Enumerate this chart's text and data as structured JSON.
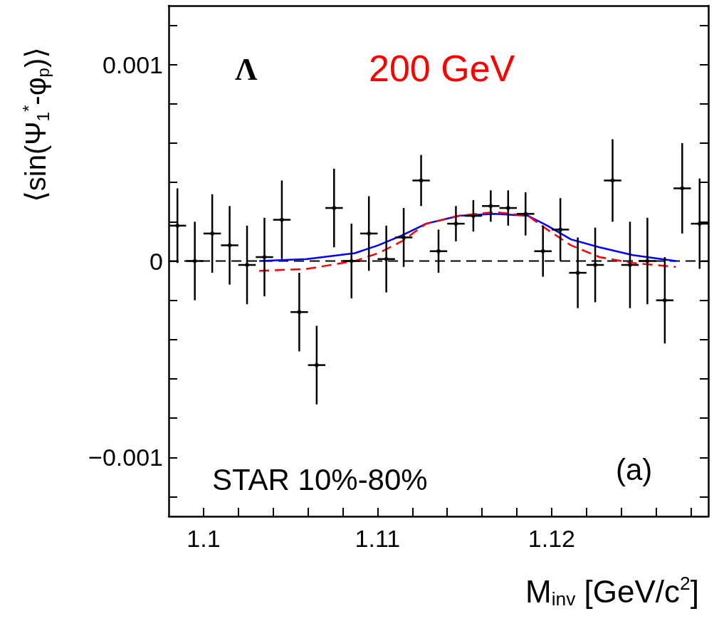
{
  "chart_data": {
    "type": "scatter",
    "xlabel": "M$_{inv}$ [GeV/c$^{2}$]",
    "ylabel": "⟨sin(Ψ$_{1}$$^{*}$-φ$_{p}$)⟩",
    "annotations": [
      "Λ",
      "200 GeV",
      "STAR 10%-80%",
      "(a)"
    ],
    "xlim": [
      1.098,
      1.129
    ],
    "xticks": [
      1.1,
      {
        "value": 1.102,
        "label": null
      },
      {
        "value": 1.104,
        "label": null
      },
      {
        "value": 1.106,
        "label": null
      },
      {
        "value": 1.108,
        "label": null
      },
      1.11,
      {
        "value": 1.112,
        "label": null
      },
      {
        "value": 1.114,
        "label": null
      },
      {
        "value": 1.116,
        "label": null
      },
      {
        "value": 1.118,
        "label": null
      },
      1.12,
      {
        "value": 1.122,
        "label": null
      },
      {
        "value": 1.124,
        "label": null
      },
      {
        "value": 1.126,
        "label": null
      },
      {
        "value": 1.128,
        "label": null
      }
    ],
    "ylim": [
      -0.0013,
      0.0013
    ],
    "yticks": [
      {
        "value": -0.0012,
        "label": null
      },
      {
        "value": -0.001,
        "label": "−0.001"
      },
      {
        "value": -0.0008,
        "label": null
      },
      {
        "value": -0.0006,
        "label": null
      },
      {
        "value": -0.0004,
        "label": null
      },
      {
        "value": -0.0002,
        "label": null
      },
      0,
      {
        "value": 0.0002,
        "label": null
      },
      {
        "value": 0.0004,
        "label": null
      },
      {
        "value": 0.0006,
        "label": null
      },
      {
        "value": 0.0008,
        "label": null
      },
      0.001,
      {
        "value": 0.0012,
        "label": null
      }
    ],
    "grid": false,
    "ref_lines": [
      {
        "axis": "y",
        "value": 0,
        "label": null,
        "color": "#000000",
        "line_style": "dashed"
      }
    ],
    "series": [
      {
        "color": "#000000",
        "x": [
          1.0985,
          1.0995,
          1.1005,
          1.1015,
          1.1025,
          1.1035,
          1.1045,
          1.1055,
          1.1065,
          1.1075,
          1.1085,
          1.1095,
          1.1105,
          1.1115,
          1.1125,
          1.1135,
          1.1145,
          1.1155,
          1.1165,
          1.1175,
          1.1185,
          1.1195,
          1.1205,
          1.1215,
          1.1225,
          1.1235,
          1.1245,
          1.1255,
          1.1265,
          1.1275,
          1.1285
        ],
        "values": [
          0.00018,
          0,
          0.00014,
          8e-05,
          -2e-05,
          2e-05,
          0.00021,
          -0.00026,
          -0.00053,
          0.00027,
          0,
          0.00014,
          1e-05,
          0.00012,
          0.00041,
          5e-05,
          0.00019,
          0.00023,
          0.00028,
          0.00027,
          0.00024,
          5e-05,
          0.00016,
          -6e-05,
          -2e-05,
          0.00041,
          -2e-05,
          0,
          -0.0002,
          0.00037,
          0.00019
        ],
        "errors": [
          0.00019,
          0.0002,
          0.0002,
          0.0002,
          0.0002,
          0.0002,
          0.0002,
          0.0002,
          0.0002,
          0.0002,
          0.00019,
          0.00019,
          0.00017,
          0.00015,
          0.00013,
          0.00011,
          9e-05,
          8e-05,
          8e-05,
          9e-05,
          0.00011,
          0.00013,
          0.00016,
          0.00018,
          0.00019,
          0.00021,
          0.00022,
          0.00022,
          0.00022,
          0.00023,
          0.00023
        ],
        "xerrors": [
          0.0005,
          0.0005,
          0.0005,
          0.0005,
          0.0005,
          0.0005,
          0.0005,
          0.0005,
          0.0005,
          0.0005,
          0.0005,
          0.0005,
          0.0005,
          0.0005,
          0.0005,
          0.0005,
          0.0005,
          0.0005,
          0.0005,
          0.0005,
          0.0005,
          0.0005,
          0.0005,
          0.0005,
          0.0005,
          0.0005,
          0.0005,
          0.0005,
          0.0005,
          0.0005,
          0.0005
        ]
      },
      {
        "type": "line",
        "color": "#0000ff",
        "line_style": "solid",
        "x": [
          1.1032,
          1.10594,
          1.10869,
          1.11004,
          1.11139,
          1.11279,
          1.11467,
          1.11672,
          1.11865,
          1.11975,
          1.12111,
          1.12275,
          1.12467,
          1.12713
        ],
        "values": [
          0,
          1e-05,
          4e-05,
          8e-05,
          0.00013,
          0.00019,
          0.00023,
          0.00024,
          0.00023,
          0.00018,
          0.00011,
          7e-05,
          3e-05,
          0
        ]
      },
      {
        "type": "line",
        "color": "#ff0000",
        "line_style": "dashed",
        "x": [
          1.1032,
          1.10594,
          1.10869,
          1.11004,
          1.11139,
          1.11279,
          1.11467,
          1.11672,
          1.11865,
          1.11975,
          1.12111,
          1.12275,
          1.12467,
          1.12713
        ],
        "values": [
          -5e-05,
          -4e-05,
          0,
          4e-05,
          0.0001,
          0.00019,
          0.00023,
          0.00025,
          0.00023,
          0.00016,
          8e-05,
          2e-05,
          -1e-05,
          -3e-05
        ]
      }
    ]
  }
}
